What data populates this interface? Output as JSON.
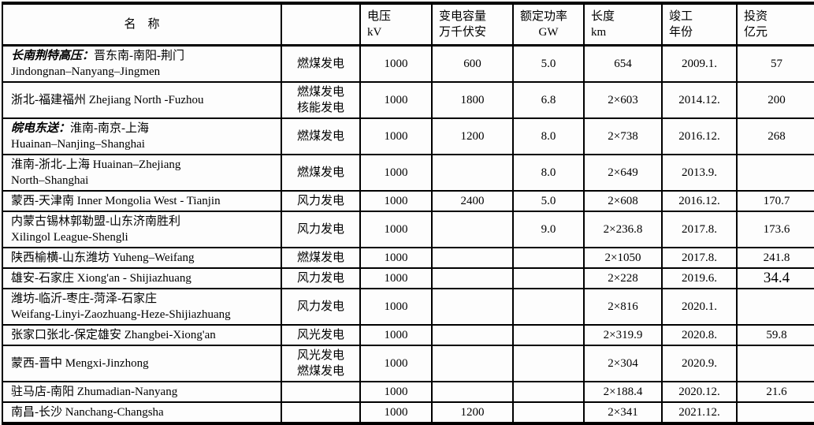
{
  "table": {
    "columns": [
      {
        "id": "name",
        "line1": "名　称",
        "line2": ""
      },
      {
        "id": "generation",
        "line1": "",
        "line2": ""
      },
      {
        "id": "voltage",
        "line1": "电压",
        "line2": "kV"
      },
      {
        "id": "capacity",
        "line1": "变电容量",
        "line2": "万千伏安"
      },
      {
        "id": "power",
        "line1": "额定功率",
        "line2": "GW"
      },
      {
        "id": "length",
        "line1": "长度",
        "line2": "km"
      },
      {
        "id": "year",
        "line1": "竣工",
        "line2": "年份"
      },
      {
        "id": "investment",
        "line1": "投资",
        "line2": "亿元"
      }
    ],
    "rows": [
      {
        "lead": "长南荆特高压：",
        "name_lines": [
          "晋东南-南阳-荆门",
          "Jindongnan–Nanyang–Jingmen"
        ],
        "types": [
          "燃煤发电"
        ],
        "voltage": "1000",
        "capacity": "600",
        "power": "5.0",
        "length": "654",
        "year": "2009.1.",
        "investment": "57"
      },
      {
        "lead": "",
        "name_lines": [
          "浙北-福建福州 Zhejiang North -Fuzhou"
        ],
        "types": [
          "燃煤发电",
          "核能发电"
        ],
        "voltage": "1000",
        "capacity": "1800",
        "power": "6.8",
        "length": "2×603",
        "year": "2014.12.",
        "investment": "200"
      },
      {
        "lead": "皖电东送：",
        "name_lines": [
          "淮南-南京-上海",
          "Huainan–Nanjing–Shanghai"
        ],
        "types": [
          "燃煤发电"
        ],
        "voltage": "1000",
        "capacity": "1200",
        "power": "8.0",
        "length": "2×738",
        "year": "2016.12.",
        "investment": "268"
      },
      {
        "lead": "",
        "name_lines": [
          "淮南-浙北-上海 Huainan–Zhejiang",
          "North–Shanghai"
        ],
        "types": [
          "燃煤发电"
        ],
        "voltage": "1000",
        "capacity": "",
        "power": "8.0",
        "length": "2×649",
        "year": "2013.9.",
        "investment": ""
      },
      {
        "lead": "",
        "name_lines": [
          "蒙西-天津南 Inner Mongolia West - Tianjin"
        ],
        "types": [
          "风力发电"
        ],
        "voltage": "1000",
        "capacity": "2400",
        "power": "5.0",
        "length": "2×608",
        "year": "2016.12.",
        "investment": "170.7"
      },
      {
        "lead": "",
        "name_lines": [
          "内蒙古锡林郭勒盟-山东济南胜利",
          "Xilingol League-Shengli"
        ],
        "types": [
          "风力发电"
        ],
        "voltage": "1000",
        "capacity": "",
        "power": "9.0",
        "length": "2×236.8",
        "year": "2017.8.",
        "investment": "173.6"
      },
      {
        "lead": "",
        "name_lines": [
          "陕西榆横-山东潍坊 Yuheng–Weifang"
        ],
        "types": [
          "燃煤发电"
        ],
        "voltage": "1000",
        "capacity": "",
        "power": "",
        "length": "2×1050",
        "year": "2017.8.",
        "investment": "241.8"
      },
      {
        "lead": "",
        "name_lines": [
          "雄安-石家庄 Xiong'an - Shijiazhuang"
        ],
        "types": [
          "风力发电"
        ],
        "voltage": "1000",
        "capacity": "",
        "power": "",
        "length": "2×228",
        "year": "2019.6.",
        "investment": "34.4",
        "investment_large": true
      },
      {
        "lead": "",
        "name_lines": [
          "潍坊-临沂-枣庄-菏泽-石家庄",
          "Weifang-Linyi-Zaozhuang-Heze-Shijiazhuang"
        ],
        "types": [
          "风力发电"
        ],
        "voltage": "1000",
        "capacity": "",
        "power": "",
        "length": "2×816",
        "year": "2020.1.",
        "investment": ""
      },
      {
        "lead": "",
        "name_lines": [
          "张家口张北-保定雄安 Zhangbei-Xiong'an"
        ],
        "types": [
          "风光发电"
        ],
        "voltage": "1000",
        "capacity": "",
        "power": "",
        "length": "2×319.9",
        "year": "2020.8.",
        "investment": "59.8"
      },
      {
        "lead": "",
        "name_lines": [
          "蒙西-晋中 Mengxi-Jinzhong"
        ],
        "types": [
          "风光发电",
          "燃煤发电"
        ],
        "voltage": "1000",
        "capacity": "",
        "power": "",
        "length": "2×304",
        "year": "2020.9.",
        "investment": ""
      },
      {
        "lead": "",
        "name_lines": [
          "驻马店-南阳 Zhumadian-Nanyang"
        ],
        "types": [],
        "voltage": "1000",
        "capacity": "",
        "power": "",
        "length": "2×188.4",
        "year": "2020.12.",
        "investment": "21.6"
      },
      {
        "lead": "",
        "name_lines": [
          "南昌-长沙 Nanchang-Changsha"
        ],
        "types": [],
        "voltage": "1000",
        "capacity": "1200",
        "power": "",
        "length": "2×341",
        "year": "2021.12.",
        "investment": ""
      }
    ]
  }
}
